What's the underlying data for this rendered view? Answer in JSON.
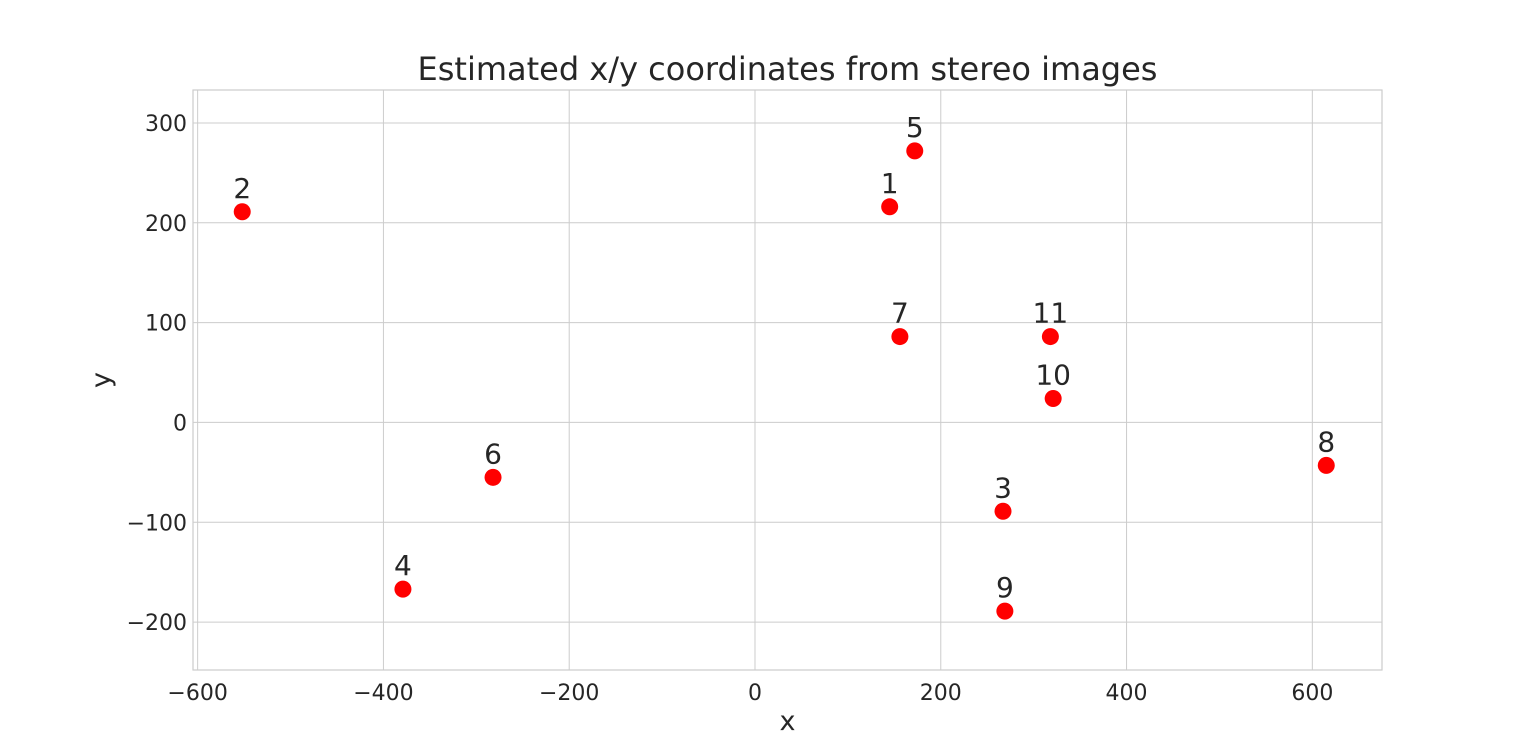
{
  "chart_data": {
    "type": "scatter",
    "title": "Estimated x/y coordinates from stereo images",
    "xlabel": "x",
    "ylabel": "y",
    "xlim": [
      -605,
      675
    ],
    "ylim": [
      -248,
      333
    ],
    "xticks": [
      -600,
      -400,
      -200,
      0,
      200,
      400,
      600
    ],
    "yticks": [
      -200,
      -100,
      0,
      100,
      200,
      300
    ],
    "xtick_labels": [
      "−600",
      "−400",
      "−200",
      "0",
      "200",
      "400",
      "600"
    ],
    "ytick_labels": [
      "−200",
      "−100",
      "0",
      "100",
      "200",
      "300"
    ],
    "grid": true,
    "marker_color": "#ff0000",
    "points": [
      {
        "label": "1",
        "x": 145,
        "y": 216
      },
      {
        "label": "2",
        "x": -552,
        "y": 211
      },
      {
        "label": "3",
        "x": 267,
        "y": -89
      },
      {
        "label": "4",
        "x": -379,
        "y": -167
      },
      {
        "label": "5",
        "x": 172,
        "y": 272
      },
      {
        "label": "6",
        "x": -282,
        "y": -55
      },
      {
        "label": "7",
        "x": 156,
        "y": 86
      },
      {
        "label": "8",
        "x": 615,
        "y": -43
      },
      {
        "label": "9",
        "x": 269,
        "y": -189
      },
      {
        "label": "10",
        "x": 321,
        "y": 24
      },
      {
        "label": "11",
        "x": 318,
        "y": 86
      }
    ]
  }
}
